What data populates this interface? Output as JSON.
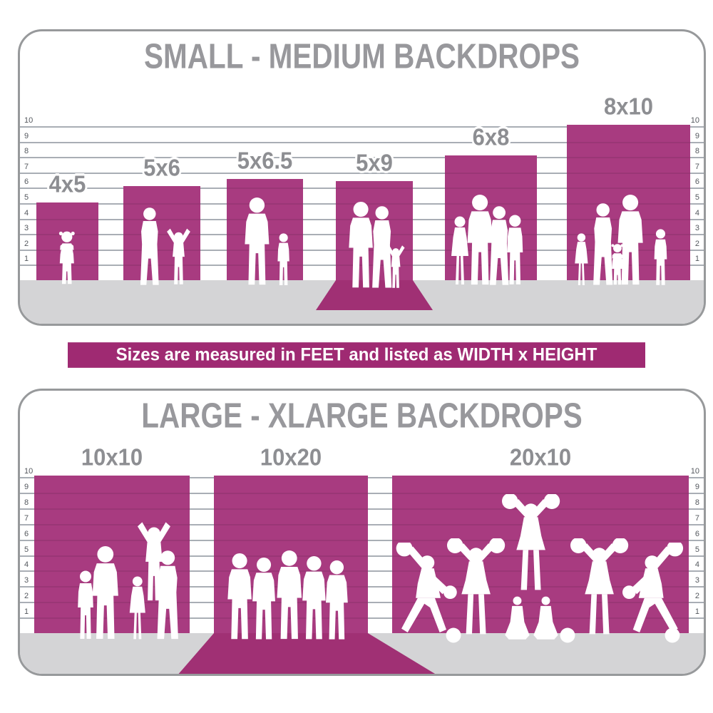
{
  "banner": {
    "text": "Sizes are measured in FEET and listed as WIDTH x HEIGHT"
  },
  "scale_ticks": [
    "10",
    "9",
    "8",
    "7",
    "6",
    "5",
    "4",
    "3",
    "2",
    "1"
  ],
  "colors": {
    "backdrop": "#a83b80",
    "backdrop_sweep": "#a03074",
    "banner_bg": "#9f2a72",
    "banner_text": "#ffffff",
    "floor": "#d4d4d6",
    "gridline": "#9aa0a8",
    "title_gray": "#98989c",
    "label_gray": "#8d8e92",
    "panel_border": "#97999b",
    "silhouette": "#ffffff"
  },
  "panels": [
    {
      "id": "small-medium",
      "title": "SMALL - MEDIUM BACKDROPS",
      "backdrops": [
        {
          "label": "4x5",
          "width_ft": 4,
          "height_ft": 5,
          "sweep": false,
          "figures": [
            "toddler"
          ]
        },
        {
          "label": "5x6",
          "width_ft": 5,
          "height_ft": 6,
          "sweep": false,
          "figures": [
            "woman",
            "child-arms-up"
          ]
        },
        {
          "label": "5x6.5",
          "width_ft": 5,
          "height_ft": 6.5,
          "sweep": false,
          "figures": [
            "man",
            "boy"
          ]
        },
        {
          "label": "5x9",
          "width_ft": 5,
          "height_ft": 9,
          "sweep": true,
          "figures": [
            "man",
            "woman",
            "child-arms-up"
          ]
        },
        {
          "label": "6x8",
          "width_ft": 6,
          "height_ft": 8,
          "sweep": false,
          "figures": [
            "girl",
            "man",
            "woman",
            "boy"
          ]
        },
        {
          "label": "8x10",
          "width_ft": 8,
          "height_ft": 10,
          "sweep": false,
          "figures": [
            "girl",
            "woman",
            "man",
            "toddler",
            "boy"
          ]
        }
      ]
    },
    {
      "id": "large-xlarge",
      "title": "LARGE - XLARGE BACKDROPS",
      "backdrops": [
        {
          "label": "10x10",
          "width_ft": 10,
          "height_ft": 10,
          "sweep": false,
          "figures": [
            "boy",
            "man",
            "girl",
            "woman",
            "child-arms-up"
          ]
        },
        {
          "label": "10x20",
          "width_ft": 10,
          "height_ft": 20,
          "sweep": true,
          "figures": [
            "man",
            "man",
            "man",
            "man",
            "man"
          ]
        },
        {
          "label": "20x10",
          "width_ft": 20,
          "height_ft": 10,
          "sweep": false,
          "figures": [
            "cheerleader-lunge-left",
            "cheerleader",
            "sitting-cheerleader",
            "sitting-cheerleader",
            "cheerleader-flyer",
            "cheerleader",
            "cheerleader-lunge-right",
            "pompom",
            "pompom",
            "pompom"
          ]
        }
      ]
    }
  ]
}
